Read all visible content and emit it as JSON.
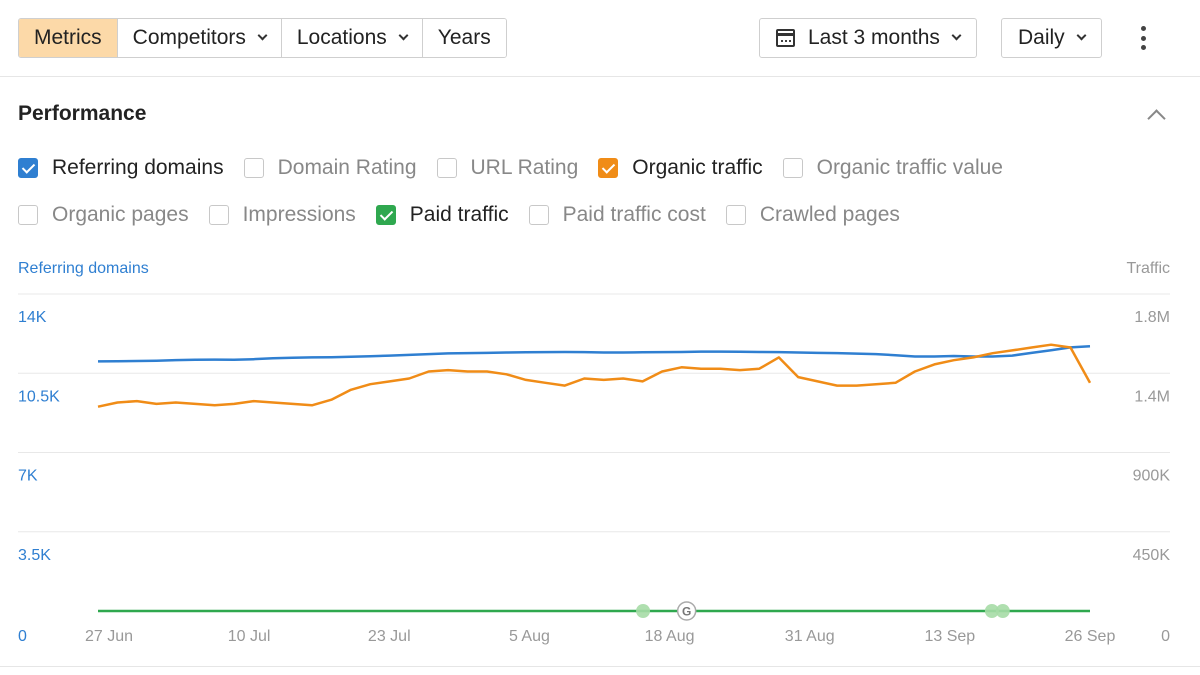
{
  "toolbar": {
    "tabs": [
      {
        "label": "Metrics",
        "active": true,
        "dropdown": false
      },
      {
        "label": "Competitors",
        "active": false,
        "dropdown": true
      },
      {
        "label": "Locations",
        "active": false,
        "dropdown": true
      },
      {
        "label": "Years",
        "active": false,
        "dropdown": false
      }
    ],
    "date_range": "Last 3 months",
    "interval": "Daily",
    "active_color": "#fcd9a8"
  },
  "performance": {
    "title": "Performance",
    "checkboxes_row1": [
      {
        "label": "Referring domains",
        "checked": true,
        "color": "#2f7fd1"
      },
      {
        "label": "Domain Rating",
        "checked": false,
        "color": ""
      },
      {
        "label": "URL Rating",
        "checked": false,
        "color": ""
      },
      {
        "label": "Organic traffic",
        "checked": true,
        "color": "#f08c17"
      },
      {
        "label": "Organic traffic value",
        "checked": false,
        "color": ""
      }
    ],
    "checkboxes_row2": [
      {
        "label": "Organic pages",
        "checked": false,
        "color": ""
      },
      {
        "label": "Impressions",
        "checked": false,
        "color": ""
      },
      {
        "label": "Paid traffic",
        "checked": true,
        "color": "#2fa84f"
      },
      {
        "label": "Paid traffic cost",
        "checked": false,
        "color": ""
      },
      {
        "label": "Crawled pages",
        "checked": false,
        "color": ""
      }
    ]
  },
  "chart_data": {
    "type": "line",
    "left_axis_label": "Referring domains",
    "right_axis_label": "Traffic",
    "left_ticks": [
      "0",
      "3.5K",
      "7K",
      "10.5K",
      "14K"
    ],
    "right_ticks": [
      "0",
      "450K",
      "900K",
      "1.4M",
      "1.8M"
    ],
    "left_ylim": [
      0,
      17500
    ],
    "right_ylim": [
      0,
      2250000
    ],
    "x_range": [
      "2023-06-27",
      "2023-09-26"
    ],
    "x_tick_labels": [
      "27 Jun",
      "10 Jul",
      "23 Jul",
      "5 Aug",
      "18 Aug",
      "31 Aug",
      "13 Sep",
      "26 Sep"
    ],
    "grid": true,
    "series": [
      {
        "name": "Referring domains",
        "axis": "left",
        "color": "#2f7fd1",
        "values": [
          13780,
          13790,
          13800,
          13820,
          13850,
          13870,
          13880,
          13870,
          13900,
          13950,
          13980,
          14000,
          14010,
          14040,
          14060,
          14100,
          14140,
          14180,
          14220,
          14240,
          14250,
          14270,
          14280,
          14290,
          14300,
          14290,
          14270,
          14270,
          14280,
          14290,
          14300,
          14320,
          14320,
          14310,
          14300,
          14290,
          14270,
          14250,
          14240,
          14210,
          14180,
          14120,
          14050,
          14050,
          14080,
          14050,
          14050,
          14100,
          14250,
          14400,
          14550,
          14620
        ]
      },
      {
        "name": "Organic traffic",
        "axis": "right",
        "color": "#f08c17",
        "values": [
          1450000,
          1480000,
          1490000,
          1470000,
          1480000,
          1470000,
          1460000,
          1470000,
          1490000,
          1480000,
          1470000,
          1460000,
          1500000,
          1570000,
          1610000,
          1630000,
          1650000,
          1700000,
          1710000,
          1700000,
          1700000,
          1680000,
          1640000,
          1620000,
          1600000,
          1650000,
          1640000,
          1650000,
          1630000,
          1700000,
          1730000,
          1720000,
          1720000,
          1710000,
          1720000,
          1800000,
          1660000,
          1630000,
          1600000,
          1600000,
          1610000,
          1620000,
          1700000,
          1750000,
          1780000,
          1800000,
          1830000,
          1850000,
          1870000,
          1890000,
          1870000,
          1620000
        ]
      },
      {
        "name": "Paid traffic",
        "axis": "right",
        "color": "#2fa84f",
        "values": [
          0,
          0,
          0,
          0,
          0,
          0,
          0,
          0,
          0,
          0,
          0,
          0,
          0,
          0,
          0,
          0,
          0,
          0,
          0,
          0,
          0,
          0,
          0,
          0,
          0,
          0,
          0,
          0,
          0,
          0,
          0,
          0,
          0,
          0,
          0,
          0,
          0,
          0,
          0,
          0,
          0,
          0,
          0,
          0,
          0,
          0,
          0,
          0,
          0,
          0,
          0,
          0
        ]
      }
    ],
    "annotations": [
      {
        "type": "marker",
        "date": "2023-08-16",
        "color": "#a6dba6"
      },
      {
        "type": "marker",
        "date": "2023-08-20",
        "label": "G",
        "color": "#ffffff"
      },
      {
        "type": "marker",
        "date": "2023-09-17",
        "color": "#a6dba6"
      },
      {
        "type": "marker",
        "date": "2023-09-18",
        "color": "#a6dba6"
      }
    ]
  }
}
